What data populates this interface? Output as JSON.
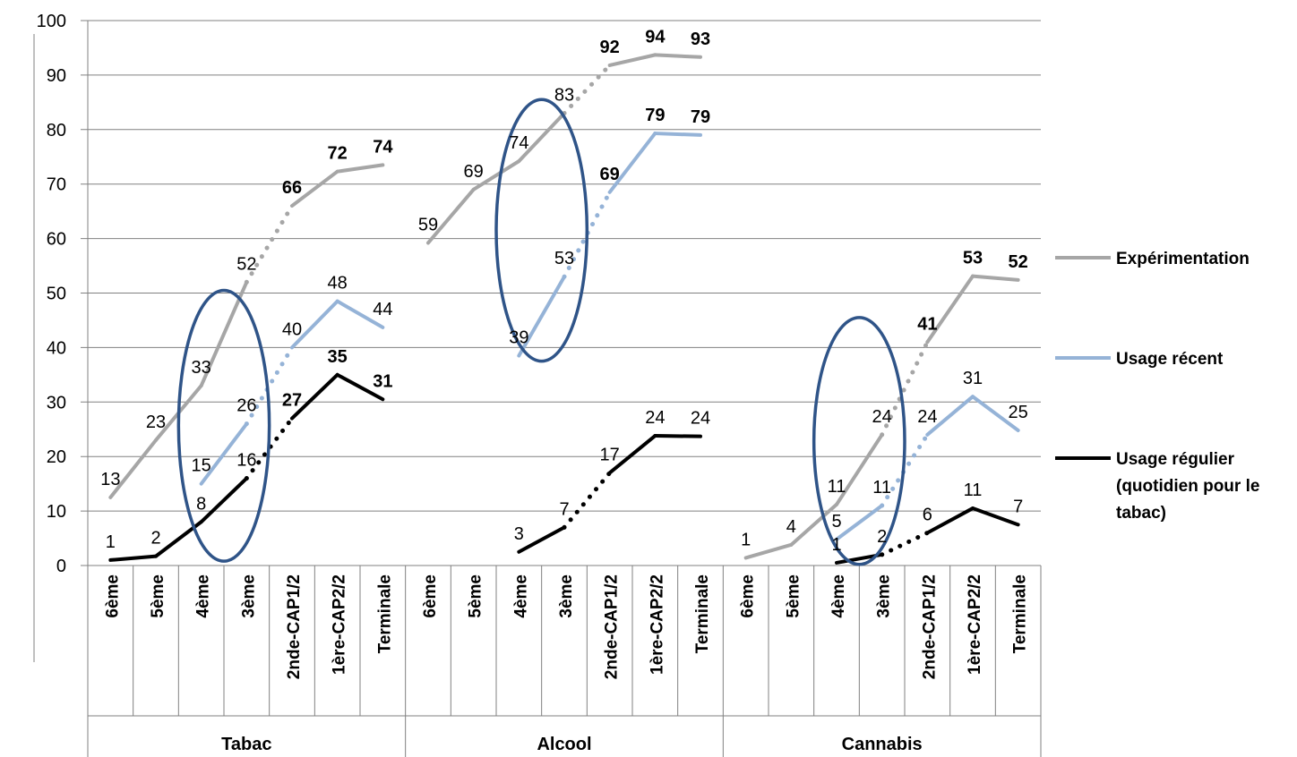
{
  "chart_data": {
    "type": "line",
    "ylim": [
      0,
      100
    ],
    "yticks": [
      0,
      10,
      20,
      30,
      40,
      50,
      60,
      70,
      80,
      90,
      100
    ],
    "grid": true,
    "legend_position": "right",
    "groups": [
      {
        "name": "Tabac",
        "categories": [
          "6ème",
          "5ème",
          "4ème",
          "3ème",
          "2nde-CAP1/2",
          "1ère-CAP2/2",
          "Terminale"
        ]
      },
      {
        "name": "Alcool",
        "categories": [
          "6ème",
          "5ème",
          "4ème",
          "3ème",
          "2nde-CAP1/2",
          "1ère-CAP2/2",
          "Terminale"
        ]
      },
      {
        "name": "Cannabis",
        "categories": [
          "6ème",
          "5ème",
          "4ème",
          "3ème",
          "2nde-CAP1/2",
          "1ère-CAP2/2",
          "Terminale"
        ]
      }
    ],
    "series": [
      {
        "name": "Expérimentation",
        "color": "#a6a6a6",
        "values": [
          12.5,
          23,
          33,
          52,
          66,
          72.3,
          73.5,
          59.2,
          69,
          74.2,
          83,
          91.8,
          93.7,
          93.3,
          1.4,
          3.8,
          11.2,
          24,
          41,
          53.1,
          52.4
        ],
        "labels": [
          "13",
          "23",
          "33",
          "52",
          "66",
          "72",
          "74",
          "59",
          "69",
          "74",
          "83",
          "92",
          "94",
          "93",
          "1",
          "4",
          "11",
          "24",
          "41",
          "53",
          "52"
        ]
      },
      {
        "name": "Usage récent",
        "color": "#95b3d7",
        "values": [
          null,
          null,
          15,
          26,
          40,
          48.5,
          43.7,
          null,
          null,
          38.5,
          53,
          68.5,
          79.3,
          79,
          null,
          null,
          4.8,
          11,
          24,
          31,
          24.8
        ],
        "labels": [
          "",
          "",
          "15",
          "26",
          "40",
          "48",
          "44",
          "",
          "",
          "39",
          "53",
          "69",
          "79",
          "79",
          "",
          "",
          "5",
          "11",
          "24",
          "31",
          "25"
        ]
      },
      {
        "name": "Usage régulier (quotidien pour le tabac)",
        "color": "#000000",
        "values": [
          1,
          1.7,
          8,
          16,
          27,
          35,
          30.5,
          null,
          null,
          2.5,
          7,
          17,
          23.8,
          23.7,
          null,
          null,
          0.5,
          2,
          6,
          10.5,
          7.5
        ],
        "labels": [
          "1",
          "2",
          "8",
          "16",
          "27",
          "35",
          "31",
          "",
          "",
          "3",
          "7",
          "17",
          "24",
          "24",
          "",
          "",
          "1",
          "2",
          "6",
          "11",
          "7"
        ]
      }
    ],
    "bold_labels": {
      "Expérimentation": [
        "66",
        "72",
        "74",
        "92",
        "94",
        "93",
        "41",
        "53",
        "52"
      ],
      "Usage récent": [
        "69",
        "79",
        "79"
      ],
      "Usage régulier (quotidien pour le tabac)": [
        "27",
        "35",
        "31"
      ]
    },
    "annotation": "ellipses highlight the 4ème–3ème transition in each group"
  },
  "colors": {
    "grid": "#808080",
    "ellipse": "#2f5488"
  }
}
